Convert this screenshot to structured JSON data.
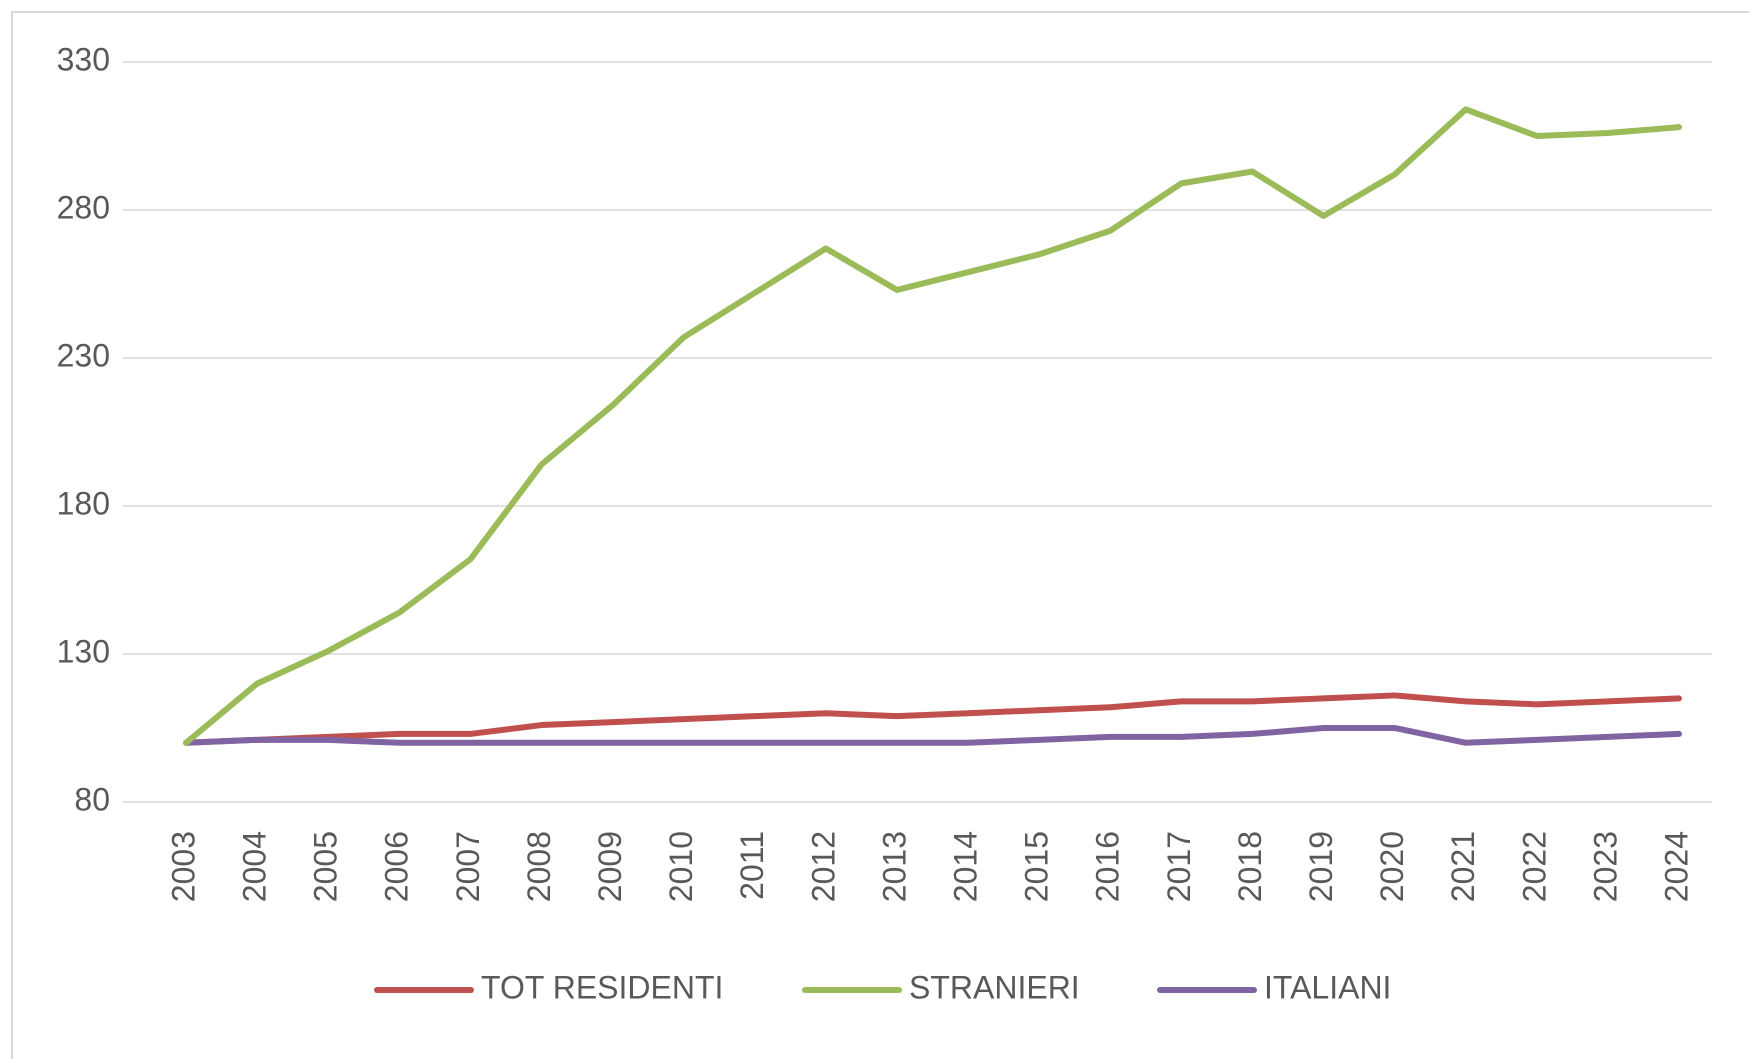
{
  "chart_data": {
    "type": "line",
    "categories": [
      "2003",
      "2004",
      "2005",
      "2006",
      "2007",
      "2008",
      "2009",
      "2010",
      "2011",
      "2012",
      "2013",
      "2014",
      "2015",
      "2016",
      "2017",
      "2018",
      "2019",
      "2020",
      "2021",
      "2022",
      "2023",
      "2024"
    ],
    "series": [
      {
        "name": "TOT RESIDENTI",
        "color": "#c0504d",
        "values": [
          100,
          101,
          102,
          103,
          103,
          106,
          107,
          108,
          109,
          110,
          109,
          110,
          111,
          112,
          114,
          114,
          115,
          116,
          114,
          113,
          114,
          115
        ]
      },
      {
        "name": "STRANIERI",
        "color": "#9bbb59",
        "values": [
          100,
          120,
          131,
          144,
          162,
          194,
          214,
          237,
          252,
          267,
          253,
          259,
          265,
          273,
          289,
          293,
          278,
          292,
          314,
          305,
          306,
          308
        ]
      },
      {
        "name": "ITALIANI",
        "color": "#8064a2",
        "values": [
          100,
          101,
          101,
          100,
          100,
          100,
          100,
          100,
          100,
          100,
          100,
          100,
          101,
          102,
          102,
          103,
          105,
          105,
          100,
          101,
          102,
          103
        ]
      }
    ],
    "ylim": [
      80,
      330
    ],
    "yticks": [
      80,
      130,
      180,
      230,
      280,
      330
    ],
    "grid": true,
    "legend": "bottom"
  }
}
